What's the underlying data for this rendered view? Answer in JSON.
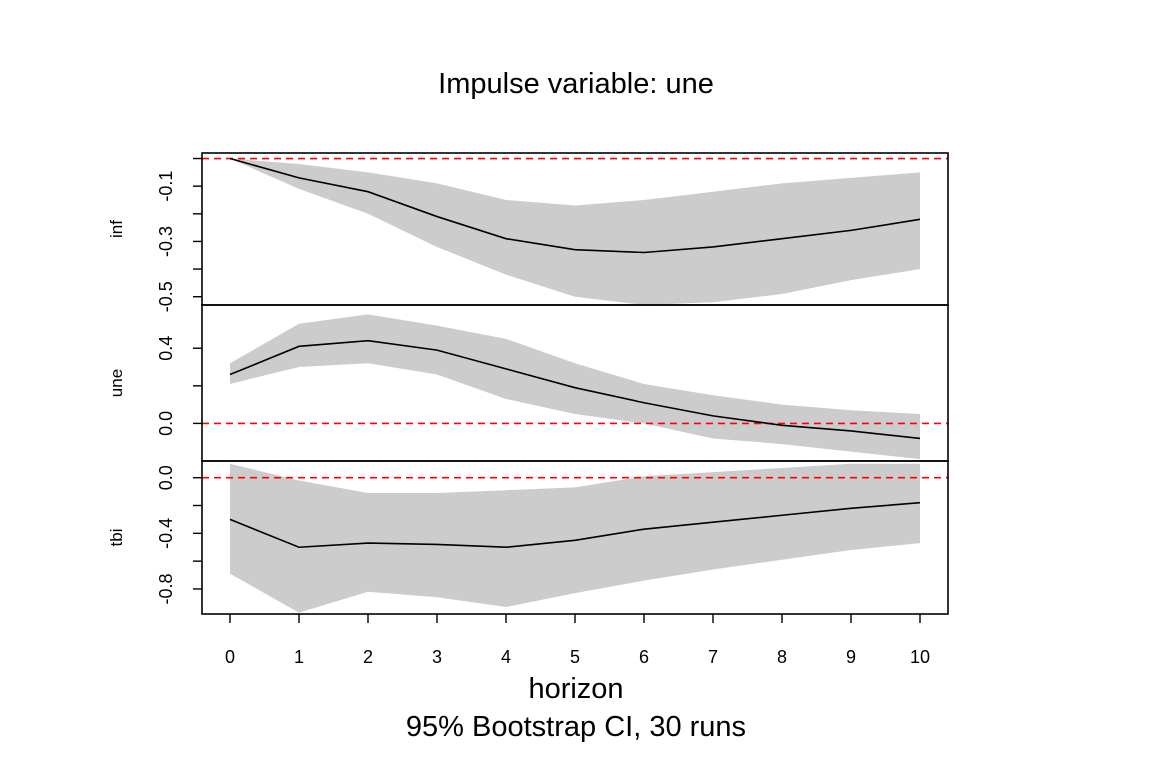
{
  "chart_data": {
    "type": "line",
    "title": "Impulse variable: une",
    "xlabel": "horizon",
    "subtitle": "95% Bootstrap CI, 30 runs",
    "x": [
      0,
      1,
      2,
      3,
      4,
      5,
      6,
      7,
      8,
      9,
      10
    ],
    "x_ticks": [
      "0",
      "1",
      "2",
      "3",
      "4",
      "5",
      "6",
      "7",
      "8",
      "9",
      "10"
    ],
    "line_color": "#000000",
    "ci_color": "#cccccc",
    "zero_line_color": "#ff0000",
    "panels": [
      {
        "ylabel": "inf",
        "ylim": [
          -0.53,
          0.02
        ],
        "yticks": [
          -0.5,
          -0.4,
          -0.3,
          -0.2,
          -0.1,
          0.0
        ],
        "ytick_labels": [
          "-0.5",
          "",
          "-0.3",
          "",
          "-0.1",
          ""
        ],
        "irf": [
          0.0,
          -0.07,
          -0.12,
          -0.21,
          -0.29,
          -0.33,
          -0.34,
          -0.32,
          -0.29,
          -0.26,
          -0.22
        ],
        "lower": [
          0.0,
          -0.11,
          -0.2,
          -0.32,
          -0.42,
          -0.5,
          -0.53,
          -0.52,
          -0.49,
          -0.44,
          -0.4
        ],
        "upper": [
          0.0,
          -0.02,
          -0.05,
          -0.09,
          -0.15,
          -0.17,
          -0.15,
          -0.12,
          -0.09,
          -0.07,
          -0.05
        ]
      },
      {
        "ylabel": "une",
        "ylim": [
          -0.2,
          0.63
        ],
        "yticks": [
          0.0,
          0.2,
          0.4
        ],
        "ytick_labels": [
          "0.0",
          "",
          "0.4"
        ],
        "irf": [
          0.26,
          0.41,
          0.44,
          0.39,
          0.29,
          0.19,
          0.11,
          0.04,
          -0.01,
          -0.04,
          -0.08
        ],
        "lower": [
          0.21,
          0.3,
          0.32,
          0.26,
          0.13,
          0.05,
          0.0,
          -0.08,
          -0.11,
          -0.15,
          -0.19
        ],
        "upper": [
          0.32,
          0.53,
          0.58,
          0.52,
          0.45,
          0.32,
          0.21,
          0.15,
          0.1,
          0.07,
          0.05
        ]
      },
      {
        "ylabel": "tbi",
        "ylim": [
          -0.98,
          0.12
        ],
        "yticks": [
          -0.8,
          -0.6,
          -0.4,
          -0.2,
          0.0
        ],
        "ytick_labels": [
          "-0.8",
          "",
          "-0.4",
          "",
          "0.0"
        ],
        "irf": [
          -0.3,
          -0.5,
          -0.47,
          -0.48,
          -0.5,
          -0.45,
          -0.37,
          -0.32,
          -0.27,
          -0.22,
          -0.18
        ],
        "lower": [
          -0.69,
          -0.97,
          -0.82,
          -0.86,
          -0.93,
          -0.83,
          -0.74,
          -0.66,
          -0.59,
          -0.52,
          -0.47
        ],
        "upper": [
          0.1,
          -0.02,
          -0.11,
          -0.11,
          -0.09,
          -0.07,
          0.01,
          0.04,
          0.07,
          0.1,
          0.1
        ]
      }
    ]
  }
}
